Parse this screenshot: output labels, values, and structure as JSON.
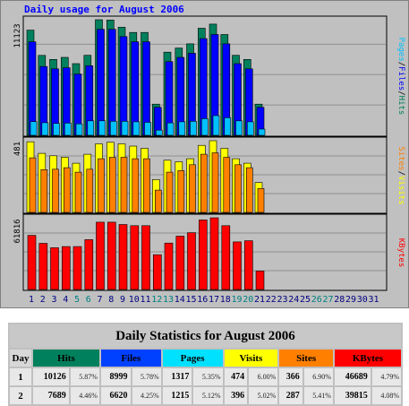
{
  "chart": {
    "title": "Daily usage for August 2006",
    "panel1_max": "11123",
    "panel1_legend": {
      "pages": "Pages",
      "sep1": "/",
      "files": "Files",
      "sep2": "/",
      "hits": "Hits"
    },
    "panel2_max": "481",
    "panel2_legend": {
      "sites": "Sites",
      "sep": "/",
      "visits": "Visits"
    },
    "panel3_max": "61816",
    "panel3_legend": {
      "kbytes": "KBytes"
    },
    "colors": {
      "hits": "#00805c",
      "files": "#0000ff",
      "pages": "#00c0ff",
      "visits": "#ffff00",
      "sites": "#ff8000",
      "kbytes": "#ff0000",
      "weekend": "#008080",
      "weekday": "#000080"
    },
    "days": [
      "1",
      "2",
      "3",
      "4",
      "5",
      "6",
      "7",
      "8",
      "9",
      "10",
      "11",
      "12",
      "13",
      "14",
      "15",
      "16",
      "17",
      "18",
      "19",
      "20",
      "21",
      "22",
      "23",
      "24",
      "25",
      "26",
      "27",
      "28",
      "29",
      "30",
      "31"
    ],
    "weekend_days": [
      5,
      6,
      12,
      13,
      19,
      20,
      26,
      27
    ]
  },
  "chart_data": {
    "type": "bar",
    "categories": [
      "1",
      "2",
      "3",
      "4",
      "5",
      "6",
      "7",
      "8",
      "9",
      "10",
      "11",
      "12",
      "13",
      "14",
      "15",
      "16",
      "17",
      "18",
      "19",
      "20",
      "21",
      "22",
      "23",
      "24",
      "25",
      "26",
      "27",
      "28",
      "29",
      "30",
      "31"
    ],
    "series": [
      {
        "name": "Hits",
        "values": [
          10126,
          7689,
          7300,
          7500,
          6900,
          7700,
          11123,
          11100,
          10400,
          9900,
          9900,
          3000,
          8000,
          8400,
          8800,
          10300,
          10700,
          9700,
          7700,
          7300,
          3000,
          null,
          null,
          null,
          null,
          null,
          null,
          null,
          null,
          null,
          null
        ]
      },
      {
        "name": "Files",
        "values": [
          8999,
          6620,
          6400,
          6500,
          5900,
          6700,
          10200,
          10200,
          9500,
          9000,
          9000,
          2700,
          7100,
          7500,
          7900,
          9300,
          9700,
          8800,
          6900,
          6400,
          2700,
          null,
          null,
          null,
          null,
          null,
          null,
          null,
          null,
          null,
          null
        ]
      },
      {
        "name": "Pages",
        "values": [
          1317,
          1215,
          1150,
          1180,
          1100,
          1400,
          1400,
          1350,
          1350,
          1300,
          1250,
          500,
          1200,
          1300,
          1350,
          1600,
          1900,
          1700,
          1400,
          1300,
          600,
          null,
          null,
          null,
          null,
          null,
          null,
          null,
          null,
          null,
          null
        ]
      },
      {
        "name": "Visits",
        "values": [
          474,
          396,
          380,
          370,
          330,
          390,
          460,
          470,
          460,
          445,
          430,
          220,
          350,
          340,
          360,
          450,
          481,
          430,
          360,
          330,
          200,
          null,
          null,
          null,
          null,
          null,
          null,
          null,
          null,
          null,
          null
        ]
      },
      {
        "name": "Sites",
        "values": [
          366,
          287,
          290,
          300,
          270,
          290,
          360,
          370,
          370,
          360,
          360,
          150,
          270,
          280,
          320,
          390,
          400,
          370,
          320,
          300,
          160,
          null,
          null,
          null,
          null,
          null,
          null,
          null,
          null,
          null,
          null
        ]
      },
      {
        "name": "KBytes",
        "values": [
          46689,
          39815,
          36000,
          37000,
          37000,
          43000,
          58000,
          58000,
          56000,
          55000,
          55000,
          30000,
          40000,
          46000,
          49000,
          60000,
          61816,
          55000,
          41000,
          42000,
          16000,
          null,
          null,
          null,
          null,
          null,
          null,
          null,
          null,
          null,
          null
        ]
      }
    ],
    "title": "Daily usage for August 2006",
    "xlabel": "",
    "ylabel": ""
  },
  "stats": {
    "title": "Daily Statistics for August 2006",
    "headers": {
      "day": "Day",
      "hits": "Hits",
      "files": "Files",
      "pages": "Pages",
      "visits": "Visits",
      "sites": "Sites",
      "kbytes": "KBytes"
    },
    "rows": [
      {
        "day": "1",
        "hits": "10126",
        "hits_pct": "5.87%",
        "files": "8999",
        "files_pct": "5.78%",
        "pages": "1317",
        "pages_pct": "5.35%",
        "visits": "474",
        "visits_pct": "6.00%",
        "sites": "366",
        "sites_pct": "6.90%",
        "kbytes": "46689",
        "kbytes_pct": "4.79%"
      },
      {
        "day": "2",
        "hits": "7689",
        "hits_pct": "4.46%",
        "files": "6620",
        "files_pct": "4.25%",
        "pages": "1215",
        "pages_pct": "5.12%",
        "visits": "396",
        "visits_pct": "5.02%",
        "sites": "287",
        "sites_pct": "5.41%",
        "kbytes": "39815",
        "kbytes_pct": "4.08%"
      }
    ]
  }
}
